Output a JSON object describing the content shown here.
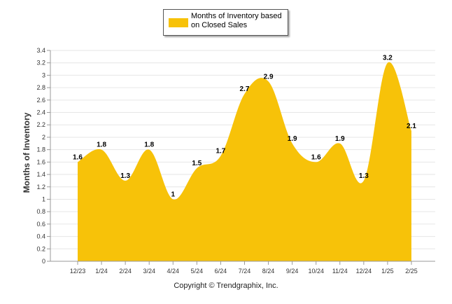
{
  "chart_data": {
    "type": "area",
    "title": "",
    "xlabel": "",
    "ylabel": "Months of Inventory",
    "categories": [
      "12/23",
      "1/24",
      "2/24",
      "3/24",
      "4/24",
      "5/24",
      "6/24",
      "7/24",
      "8/24",
      "9/24",
      "10/24",
      "11/24",
      "12/24",
      "1/25",
      "2/25"
    ],
    "series": [
      {
        "name": "Months of Inventory based on Closed Sales",
        "values": [
          1.6,
          1.8,
          1.3,
          1.8,
          1,
          1.5,
          1.7,
          2.7,
          2.9,
          1.9,
          1.6,
          1.9,
          1.3,
          3.2,
          2.1
        ],
        "labels": [
          "1.6",
          "1.8",
          "1.3",
          "1.8",
          "1",
          "1.5",
          "1.7",
          "2.7",
          "2.9",
          "1.9",
          "1.6",
          "1.9",
          "1.3",
          "3.2",
          "2.1"
        ],
        "color": "#F7C209"
      }
    ],
    "ylim": [
      0,
      3.4
    ],
    "yticks": [
      "0",
      "0.2",
      "0.4",
      "0.6",
      "0.8",
      "1",
      "1.2",
      "1.4",
      "1.6",
      "1.8",
      "2",
      "2.2",
      "2.4",
      "2.6",
      "2.8",
      "3",
      "3.2",
      "3.4"
    ],
    "grid": true,
    "legend_position": "top-center"
  },
  "footer": {
    "copyright": "Copyright © Trendgraphix, Inc."
  }
}
